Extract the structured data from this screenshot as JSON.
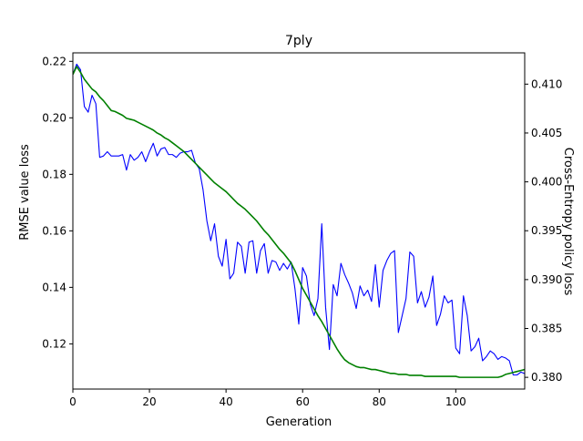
{
  "chart_data": {
    "type": "line",
    "title": "7ply",
    "xlabel": "Generation",
    "ylabel": "RMSE value loss",
    "y2label": "Cross-Entropy policy loss",
    "xlim": [
      0,
      118
    ],
    "ylim": [
      0.104,
      0.223
    ],
    "y2lim": [
      0.3788,
      0.4132
    ],
    "x_ticks": [
      0,
      20,
      40,
      60,
      80,
      100
    ],
    "y_ticks": [
      0.12,
      0.14,
      0.16,
      0.18,
      0.2,
      0.22
    ],
    "y2_ticks": [
      0.38,
      0.385,
      0.39,
      0.395,
      0.4,
      0.405,
      0.41
    ],
    "y_tick_labels": [
      "0.12",
      "0.14",
      "0.16",
      "0.18",
      "0.20",
      "0.22"
    ],
    "y2_tick_labels": [
      "0.380",
      "0.385",
      "0.390",
      "0.395",
      "0.400",
      "0.405",
      "0.410"
    ],
    "grid": false,
    "series": [
      {
        "axis": "left",
        "color": "#0000ff",
        "values": [
          0.2155,
          0.219,
          0.217,
          0.204,
          0.202,
          0.208,
          0.205,
          0.186,
          0.1865,
          0.188,
          0.1865,
          0.1865,
          0.1865,
          0.187,
          0.1815,
          0.187,
          0.185,
          0.186,
          0.188,
          0.1845,
          0.188,
          0.191,
          0.1865,
          0.189,
          0.1895,
          0.187,
          0.187,
          0.186,
          0.1875,
          0.188,
          0.188,
          0.1885,
          0.184,
          0.182,
          0.1745,
          0.1635,
          0.1565,
          0.1625,
          0.151,
          0.1475,
          0.157,
          0.143,
          0.145,
          0.156,
          0.1545,
          0.145,
          0.156,
          0.1565,
          0.145,
          0.153,
          0.1555,
          0.145,
          0.1495,
          0.149,
          0.146,
          0.1485,
          0.1465,
          0.149,
          0.1395,
          0.127,
          0.147,
          0.144,
          0.134,
          0.13,
          0.136,
          0.1625,
          0.133,
          0.118,
          0.141,
          0.137,
          0.1485,
          0.1445,
          0.1415,
          0.138,
          0.1325,
          0.1405,
          0.137,
          0.139,
          0.135,
          0.148,
          0.133,
          0.146,
          0.1495,
          0.152,
          0.153,
          0.124,
          0.13,
          0.136,
          0.1525,
          0.151,
          0.1345,
          0.1385,
          0.133,
          0.1365,
          0.144,
          0.1265,
          0.1305,
          0.137,
          0.1345,
          0.1355,
          0.1185,
          0.1165,
          0.137,
          0.13,
          0.1175,
          0.119,
          0.122,
          0.114,
          0.1155,
          0.1175,
          0.1165,
          0.1145,
          0.1155,
          0.115,
          0.114,
          0.109,
          0.109,
          0.11,
          0.1095
        ]
      },
      {
        "axis": "right",
        "color": "#008000",
        "values": [
          0.411,
          0.4118,
          0.4112,
          0.4105,
          0.41,
          0.4095,
          0.4092,
          0.4087,
          0.4083,
          0.4078,
          0.4073,
          0.4072,
          0.407,
          0.4068,
          0.4065,
          0.4064,
          0.4063,
          0.4061,
          0.4059,
          0.4057,
          0.4055,
          0.4053,
          0.405,
          0.4048,
          0.4045,
          0.4043,
          0.404,
          0.4037,
          0.4034,
          0.4031,
          0.4027,
          0.4023,
          0.4019,
          0.4015,
          0.4011,
          0.4007,
          0.4003,
          0.3999,
          0.3996,
          0.3993,
          0.399,
          0.3986,
          0.3982,
          0.3978,
          0.3975,
          0.3972,
          0.3968,
          0.3964,
          0.396,
          0.3955,
          0.395,
          0.3946,
          0.3941,
          0.3936,
          0.3931,
          0.3927,
          0.3922,
          0.3917,
          0.3909,
          0.39,
          0.3891,
          0.3884,
          0.3877,
          0.387,
          0.3863,
          0.3857,
          0.385,
          0.3843,
          0.3836,
          0.3829,
          0.3823,
          0.3818,
          0.3815,
          0.3813,
          0.3811,
          0.381,
          0.381,
          0.3809,
          0.3808,
          0.3808,
          0.3807,
          0.3806,
          0.3805,
          0.3804,
          0.3804,
          0.3803,
          0.3803,
          0.3803,
          0.3802,
          0.3802,
          0.3802,
          0.3802,
          0.3801,
          0.3801,
          0.3801,
          0.3801,
          0.3801,
          0.3801,
          0.3801,
          0.3801,
          0.3801,
          0.38,
          0.38,
          0.38,
          0.38,
          0.38,
          0.38,
          0.38,
          0.38,
          0.38,
          0.38,
          0.38,
          0.3801,
          0.3803,
          0.3804,
          0.3805,
          0.3806,
          0.3807,
          0.3808,
          0.3809
        ]
      }
    ]
  }
}
